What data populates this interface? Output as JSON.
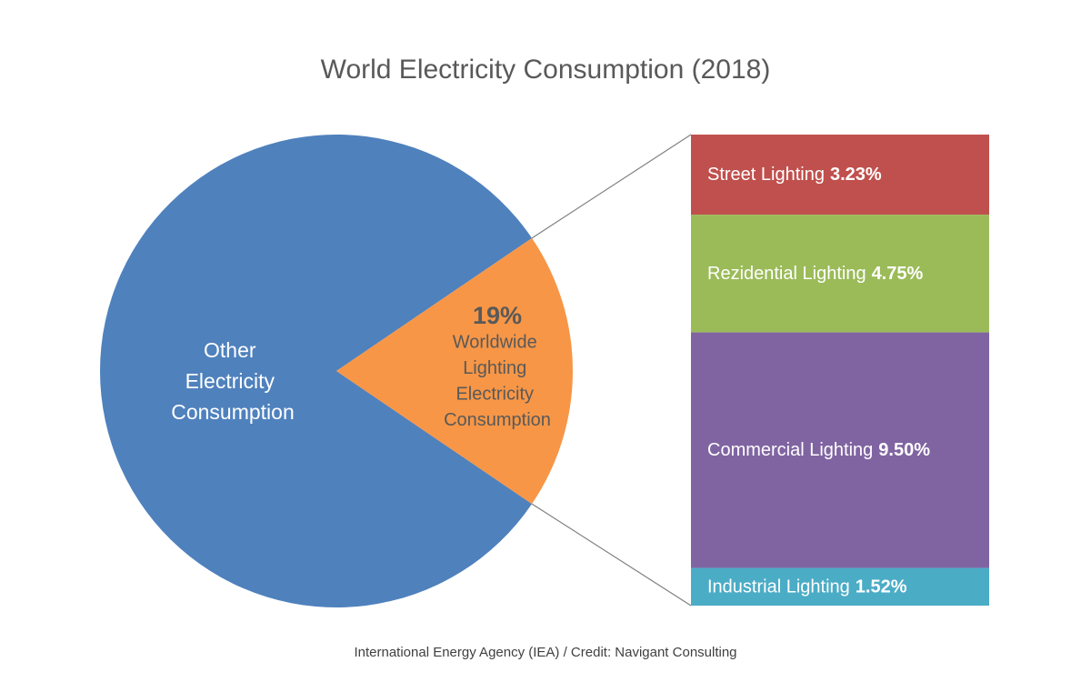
{
  "chart_data": {
    "type": "bar-of-pie",
    "title": "World Electricity Consumption (2018)",
    "source": "International Energy Agency (IEA) / Credit: Navigant Consulting",
    "categories": [
      "Other Electricity Consumption",
      "Worldwide Lighting Electricity Consumption"
    ],
    "values": [
      81,
      19
    ],
    "value_labels": [
      null,
      "19%"
    ],
    "colors": [
      "#4f81bd",
      "#f79646"
    ],
    "breakdown": {
      "categories": [
        "Street Lighting",
        "Rezidential Lighting",
        "Commercial Lighting",
        "Industrial Lighting"
      ],
      "values": [
        3.23,
        4.75,
        9.5,
        1.52
      ],
      "value_labels": [
        "3.23%",
        "4.75%",
        "9.50%",
        "1.52%"
      ],
      "colors": [
        "#c0504d",
        "#9bbb59",
        "#8064a2",
        "#4bacc6"
      ]
    }
  }
}
